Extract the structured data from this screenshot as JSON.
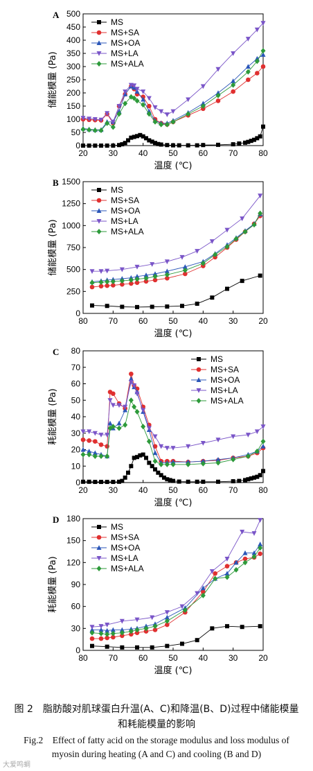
{
  "caption": {
    "cn": "图 2　脂肪酸对肌球蛋白升温(A、C)和降温(B、D)过程中储能模量和耗能模量的影响",
    "en": "Fig.2　Effect of fatty acid on the storage modulus and loss modulus of myosin during heating (A and C) and cooling (B and D)"
  },
  "watermark": "大爱鸣蜩",
  "colors": {
    "MS": "#000000",
    "MS+SA": "#e03030",
    "MS+OA": "#2a56b8",
    "MS+LA": "#7a55c8",
    "MS+ALA": "#2d9a3a"
  },
  "chart_data": [
    {
      "panel": "A",
      "type": "line",
      "xlabel": "温度 (℃)",
      "ylabel": "储能模量 (Pa)",
      "xlim": [
        20,
        80
      ],
      "ylim": [
        0,
        500
      ],
      "xticks": [
        20,
        30,
        40,
        50,
        60,
        70,
        80
      ],
      "yticks": [
        0,
        50,
        100,
        150,
        200,
        250,
        300,
        350,
        400,
        450,
        500
      ],
      "legend": [
        "MS",
        "MS+SA",
        "MS+OA",
        "MS+LA",
        "MS+ALA"
      ],
      "series": [
        {
          "name": "MS",
          "marker": "square",
          "x": [
            20,
            22,
            24,
            26,
            28,
            30,
            32,
            33,
            34,
            35,
            36,
            37,
            38,
            39,
            40,
            41,
            42,
            43,
            44,
            45,
            46,
            48,
            50,
            52,
            55,
            58,
            60,
            65,
            70,
            72,
            74,
            75,
            76,
            77,
            78,
            79,
            80
          ],
          "y": [
            0,
            0,
            0,
            0,
            0,
            0,
            2,
            5,
            10,
            20,
            30,
            33,
            36,
            40,
            35,
            28,
            20,
            15,
            10,
            6,
            4,
            2,
            1,
            1,
            1,
            1,
            2,
            3,
            5,
            8,
            11,
            14,
            18,
            22,
            28,
            35,
            72
          ]
        },
        {
          "name": "MS+SA",
          "marker": "circle",
          "x": [
            20,
            22,
            24,
            26,
            28,
            30,
            32,
            34,
            36,
            37,
            38,
            40,
            42,
            44,
            46,
            48,
            50,
            55,
            60,
            65,
            70,
            75,
            78,
            80
          ],
          "y": [
            100,
            98,
            97,
            96,
            120,
            85,
            150,
            195,
            225,
            215,
            195,
            185,
            150,
            100,
            85,
            80,
            90,
            115,
            140,
            170,
            205,
            250,
            275,
            300
          ]
        },
        {
          "name": "MS+OA",
          "marker": "triangle-up",
          "x": [
            20,
            22,
            24,
            26,
            28,
            30,
            32,
            34,
            36,
            37,
            38,
            40,
            42,
            44,
            46,
            48,
            50,
            55,
            60,
            65,
            70,
            75,
            78,
            80
          ],
          "y": [
            65,
            62,
            60,
            60,
            90,
            90,
            130,
            195,
            225,
            220,
            205,
            175,
            130,
            95,
            85,
            85,
            95,
            125,
            160,
            200,
            245,
            300,
            330,
            345
          ]
        },
        {
          "name": "MS+LA",
          "marker": "triangle-down",
          "x": [
            20,
            22,
            24,
            26,
            28,
            30,
            32,
            34,
            36,
            37,
            38,
            40,
            42,
            44,
            46,
            48,
            50,
            55,
            60,
            65,
            70,
            75,
            78,
            80
          ],
          "y": [
            105,
            102,
            100,
            98,
            123,
            90,
            150,
            205,
            230,
            228,
            215,
            205,
            180,
            145,
            130,
            118,
            130,
            175,
            225,
            290,
            350,
            405,
            440,
            465
          ]
        },
        {
          "name": "MS+ALA",
          "marker": "diamond",
          "x": [
            20,
            22,
            24,
            26,
            28,
            30,
            32,
            34,
            36,
            37,
            38,
            40,
            42,
            44,
            46,
            48,
            50,
            55,
            60,
            65,
            70,
            75,
            78,
            80
          ],
          "y": [
            62,
            60,
            58,
            58,
            85,
            70,
            120,
            160,
            185,
            180,
            170,
            155,
            120,
            90,
            80,
            80,
            90,
            120,
            150,
            190,
            230,
            280,
            320,
            360
          ]
        }
      ]
    },
    {
      "panel": "B",
      "type": "line",
      "xlabel": "温度 (℃)",
      "ylabel": "储能模量 (Pa)",
      "xlim": [
        80,
        20
      ],
      "ylim": [
        0,
        1500
      ],
      "xticks": [
        80,
        70,
        60,
        50,
        40,
        30,
        20
      ],
      "yticks": [
        0,
        250,
        500,
        750,
        1000,
        1250,
        1500
      ],
      "legend": [
        "MS",
        "MS+SA",
        "MS+OA",
        "MS+LA",
        "MS+ALA"
      ],
      "series": [
        {
          "name": "MS",
          "marker": "square",
          "x": [
            77,
            72,
            67,
            62,
            57,
            52,
            47,
            42,
            37,
            32,
            27,
            21
          ],
          "y": [
            90,
            85,
            75,
            72,
            75,
            78,
            85,
            110,
            180,
            280,
            370,
            430
          ]
        },
        {
          "name": "MS+SA",
          "marker": "circle",
          "x": [
            77,
            74,
            72,
            70,
            67,
            64,
            62,
            59,
            56,
            52,
            46,
            40,
            36,
            32,
            29,
            26,
            23,
            21
          ],
          "y": [
            300,
            310,
            315,
            320,
            330,
            340,
            350,
            365,
            380,
            400,
            450,
            540,
            640,
            750,
            840,
            930,
            1020,
            1110
          ]
        },
        {
          "name": "MS+OA",
          "marker": "triangle-up",
          "x": [
            77,
            74,
            72,
            70,
            67,
            64,
            62,
            59,
            56,
            52,
            46,
            40,
            36,
            32,
            29,
            26,
            23,
            21
          ],
          "y": [
            360,
            370,
            380,
            385,
            395,
            405,
            420,
            435,
            450,
            480,
            530,
            590,
            680,
            780,
            860,
            940,
            1020,
            1130
          ]
        },
        {
          "name": "MS+LA",
          "marker": "triangle-down",
          "x": [
            77,
            74,
            72,
            67,
            62,
            57,
            52,
            47,
            42,
            37,
            32,
            27,
            21
          ],
          "y": [
            480,
            480,
            485,
            500,
            530,
            560,
            590,
            640,
            710,
            820,
            950,
            1080,
            1340
          ]
        },
        {
          "name": "MS+ALA",
          "marker": "diamond",
          "x": [
            77,
            74,
            72,
            70,
            67,
            64,
            62,
            59,
            56,
            52,
            46,
            40,
            36,
            32,
            29,
            26,
            23,
            21
          ],
          "y": [
            350,
            355,
            360,
            362,
            370,
            380,
            390,
            400,
            420,
            440,
            490,
            570,
            670,
            760,
            850,
            930,
            1010,
            1140
          ]
        }
      ]
    },
    {
      "panel": "C",
      "type": "line",
      "xlabel": "温度 (℃)",
      "ylabel": "耗能模量 (Pa)",
      "xlim": [
        20,
        80
      ],
      "ylim": [
        0,
        80
      ],
      "xticks": [
        20,
        30,
        40,
        50,
        60,
        70,
        80
      ],
      "yticks": [
        0,
        10,
        20,
        30,
        40,
        50,
        60,
        70,
        80
      ],
      "legend": [
        "MS",
        "MS+SA",
        "MS+OA",
        "MS+LA",
        "MS+ALA"
      ],
      "series": [
        {
          "name": "MS",
          "marker": "square",
          "x": [
            20,
            22,
            24,
            26,
            28,
            30,
            32,
            33,
            34,
            35,
            36,
            37,
            38,
            39,
            40,
            41,
            42,
            43,
            44,
            45,
            46,
            47,
            48,
            49,
            50,
            52,
            55,
            58,
            60,
            65,
            70,
            72,
            74,
            75,
            76,
            77,
            78,
            79,
            80
          ],
          "y": [
            0.5,
            0.5,
            0.4,
            0.4,
            0.4,
            0.4,
            0.5,
            1,
            3,
            6,
            10,
            15,
            15.5,
            16.5,
            17,
            15,
            12,
            10,
            8,
            6,
            4.5,
            3,
            2,
            1.5,
            1,
            0.6,
            0.5,
            0.5,
            0.5,
            0.5,
            0.8,
            1,
            1.5,
            2,
            2.5,
            3,
            3.5,
            4.5,
            7
          ]
        },
        {
          "name": "MS+SA",
          "marker": "circle",
          "x": [
            20,
            22,
            24,
            26,
            28,
            29,
            30,
            32,
            34,
            36,
            37,
            38,
            40,
            42,
            44,
            46,
            48,
            50,
            55,
            60,
            65,
            70,
            75,
            78,
            80
          ],
          "y": [
            26,
            25.5,
            25,
            23,
            22,
            55,
            54,
            48,
            45,
            66,
            59,
            57,
            46,
            35,
            22,
            13,
            13,
            13,
            12.5,
            13,
            13.5,
            15,
            16,
            18,
            21
          ]
        },
        {
          "name": "MS+OA",
          "marker": "triangle-up",
          "x": [
            20,
            22,
            24,
            26,
            28,
            29,
            30,
            32,
            34,
            36,
            37,
            38,
            40,
            42,
            44,
            46,
            48,
            50,
            55,
            60,
            65,
            70,
            75,
            78,
            80
          ],
          "y": [
            20,
            19,
            18,
            17,
            16,
            36,
            33,
            36,
            44,
            63,
            58,
            55,
            43,
            32,
            18,
            12,
            12,
            12.5,
            12.5,
            13,
            14,
            15,
            17,
            19,
            22
          ]
        },
        {
          "name": "MS+LA",
          "marker": "triangle-down",
          "x": [
            20,
            22,
            24,
            26,
            28,
            29,
            30,
            32,
            34,
            36,
            37,
            38,
            40,
            42,
            44,
            46,
            48,
            50,
            55,
            60,
            65,
            70,
            75,
            78,
            80
          ],
          "y": [
            31,
            31,
            30,
            29,
            29,
            50,
            47,
            47,
            46,
            61,
            59,
            54,
            44,
            33,
            28,
            22,
            21,
            21,
            22,
            24,
            26,
            28,
            29,
            31,
            34
          ]
        },
        {
          "name": "MS+ALA",
          "marker": "diamond",
          "x": [
            20,
            22,
            24,
            26,
            28,
            29,
            30,
            32,
            34,
            36,
            37,
            38,
            40,
            42,
            44,
            46,
            48,
            50,
            55,
            60,
            65,
            70,
            75,
            78,
            80
          ],
          "y": [
            17,
            17,
            16,
            16,
            16,
            33,
            34,
            33,
            35,
            50,
            46,
            43,
            34,
            25,
            13,
            11,
            11,
            11,
            11,
            11.5,
            12,
            14,
            16,
            19,
            25
          ]
        }
      ]
    },
    {
      "panel": "D",
      "type": "line",
      "xlabel": "温度 (℃)",
      "ylabel": "耗能模量 (Pa)",
      "xlim": [
        80,
        20
      ],
      "ylim": [
        0,
        180
      ],
      "xticks": [
        80,
        70,
        60,
        50,
        40,
        30,
        20
      ],
      "yticks": [
        0,
        30,
        60,
        90,
        120,
        150,
        180
      ],
      "legend": [
        "MS",
        "MS+SA",
        "MS+OA",
        "MS+LA",
        "MS+ALA"
      ],
      "series": [
        {
          "name": "MS",
          "marker": "square",
          "x": [
            77,
            72,
            67,
            62,
            57,
            52,
            47,
            42,
            37,
            32,
            27,
            21
          ],
          "y": [
            6,
            5,
            4,
            4,
            4,
            6,
            9,
            14,
            30,
            33,
            32,
            33
          ]
        },
        {
          "name": "MS+SA",
          "marker": "circle",
          "x": [
            77,
            74,
            72,
            70,
            67,
            64,
            62,
            59,
            56,
            52,
            46,
            40,
            36,
            32,
            29,
            26,
            23,
            21
          ],
          "y": [
            16,
            16,
            17,
            18,
            20,
            22,
            24,
            26,
            28,
            35,
            52,
            80,
            105,
            115,
            120,
            125,
            127,
            132
          ]
        },
        {
          "name": "MS+OA",
          "marker": "triangle-up",
          "x": [
            77,
            74,
            72,
            70,
            67,
            64,
            62,
            59,
            56,
            52,
            46,
            40,
            36,
            32,
            29,
            26,
            23,
            21
          ],
          "y": [
            28,
            28,
            27,
            28,
            28,
            29,
            30,
            33,
            36,
            45,
            58,
            85,
            98,
            105,
            120,
            133,
            133,
            145
          ]
        },
        {
          "name": "MS+LA",
          "marker": "triangle-down",
          "x": [
            77,
            74,
            72,
            67,
            62,
            57,
            52,
            47,
            42,
            37,
            32,
            27,
            23,
            21
          ],
          "y": [
            32,
            33,
            35,
            40,
            42,
            45,
            52,
            60,
            78,
            108,
            125,
            162,
            160,
            178
          ]
        },
        {
          "name": "MS+ALA",
          "marker": "diamond",
          "x": [
            77,
            74,
            72,
            70,
            67,
            64,
            62,
            59,
            56,
            52,
            46,
            40,
            36,
            32,
            29,
            26,
            23,
            21
          ],
          "y": [
            24,
            23,
            22,
            23,
            24,
            26,
            28,
            30,
            33,
            40,
            55,
            75,
            98,
            100,
            110,
            120,
            128,
            140
          ]
        }
      ]
    }
  ]
}
